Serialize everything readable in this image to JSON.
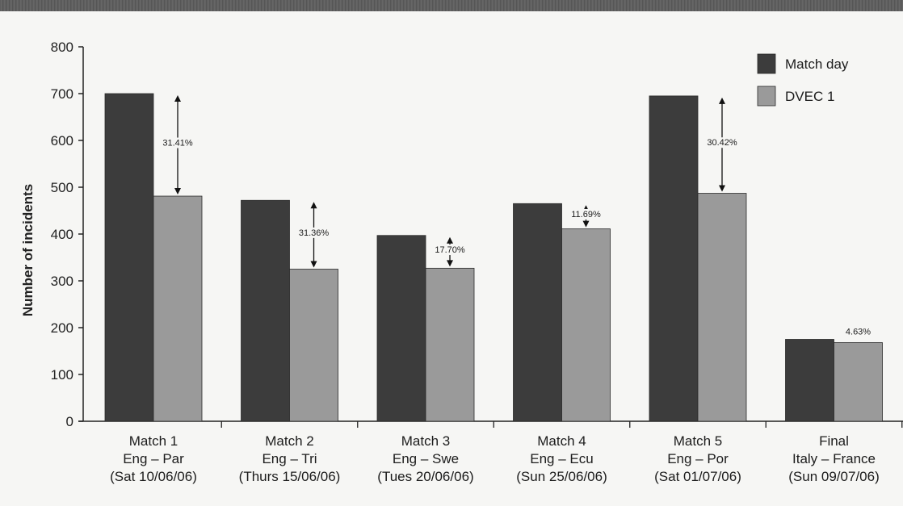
{
  "chart_data": {
    "type": "bar",
    "title": "",
    "xlabel": "",
    "ylabel": "Number of incidents",
    "ylim": [
      0,
      800
    ],
    "yticks": [
      0,
      100,
      200,
      300,
      400,
      500,
      600,
      700,
      800
    ],
    "categories": [
      [
        "Match 1",
        "Eng – Par",
        "(Sat 10/06/06)"
      ],
      [
        "Match 2",
        "Eng – Tri",
        "(Thurs 15/06/06)"
      ],
      [
        "Match 3",
        "Eng – Swe",
        "(Tues 20/06/06)"
      ],
      [
        "Match 4",
        "Eng – Ecu",
        "(Sun 25/06/06)"
      ],
      [
        "Match 5",
        "Eng – Por",
        "(Sat 01/07/06)"
      ],
      [
        "Final",
        "Italy – France",
        "(Sun 09/07/06)"
      ]
    ],
    "series": [
      {
        "name": "Match day",
        "color": "#3c3c3c",
        "values": [
          700,
          472,
          397,
          465,
          695,
          175
        ]
      },
      {
        "name": "DVEC 1",
        "color": "#9a9a9a",
        "values": [
          481,
          325,
          327,
          411,
          487,
          168
        ]
      }
    ],
    "annotations": [
      "31.41%",
      "31.36%",
      "17.70%",
      "11.69%",
      "30.42%",
      "4.63%"
    ],
    "legend_position": "top-right",
    "grid": false
  }
}
